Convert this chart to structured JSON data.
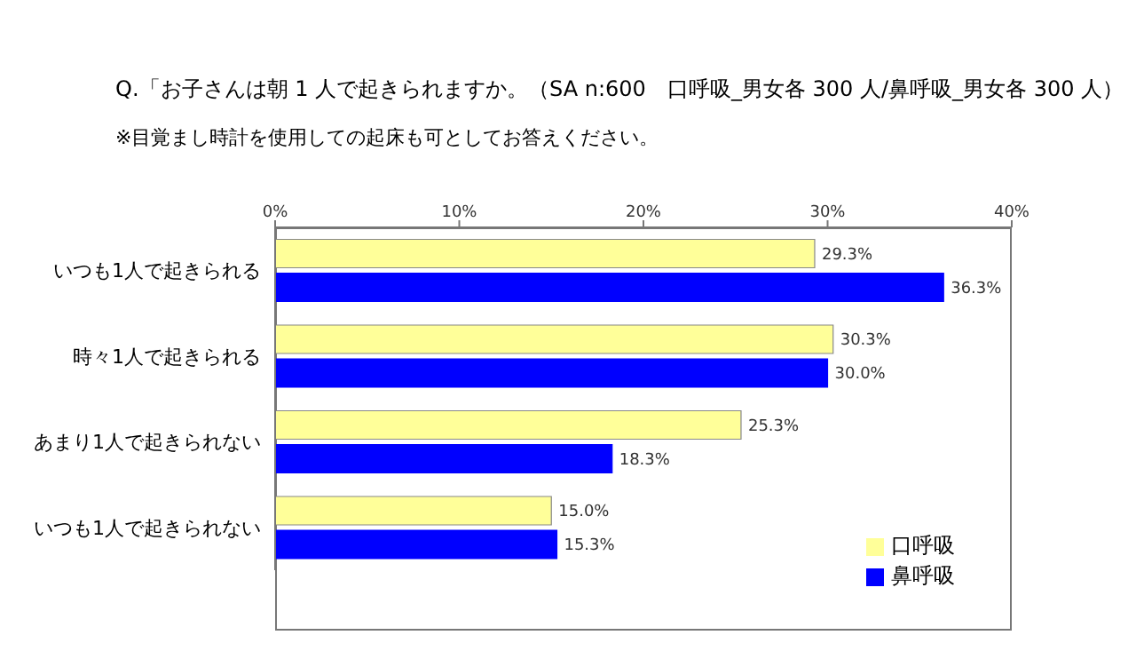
{
  "chart_data": {
    "type": "bar",
    "orientation": "horizontal",
    "title": "Q.「お子さんは朝 1 人で起きられますか。（SA n:600　口呼吸_男女各 300 人/鼻呼吸_男女各 300 人）",
    "subtitle": "※目覚まし時計を使用しての起床も可としてお答えください。",
    "categories": [
      "いつも1人で起きられる",
      "時々1人で起きられる",
      "あまり1人で起きられない",
      "いつも1人で起きられない"
    ],
    "series": [
      {
        "name": "口呼吸",
        "color": "#ffff99",
        "values": [
          29.3,
          30.3,
          25.3,
          15.0
        ],
        "value_labels": [
          "29.3%",
          "30.3%",
          "25.3%",
          "15.0%"
        ]
      },
      {
        "name": "鼻呼吸",
        "color": "#0000ff",
        "values": [
          36.3,
          30.0,
          18.3,
          15.3
        ],
        "value_labels": [
          "36.3%",
          "30.0%",
          "18.3%",
          "15.3%"
        ]
      }
    ],
    "xlim": [
      0,
      40
    ],
    "xticks": [
      {
        "value": 0,
        "label": "0%"
      },
      {
        "value": 10,
        "label": "10%"
      },
      {
        "value": 20,
        "label": "20%"
      },
      {
        "value": 30,
        "label": "30%"
      },
      {
        "value": 40,
        "label": "40%"
      }
    ],
    "grid": false,
    "legend": "bottom right"
  }
}
